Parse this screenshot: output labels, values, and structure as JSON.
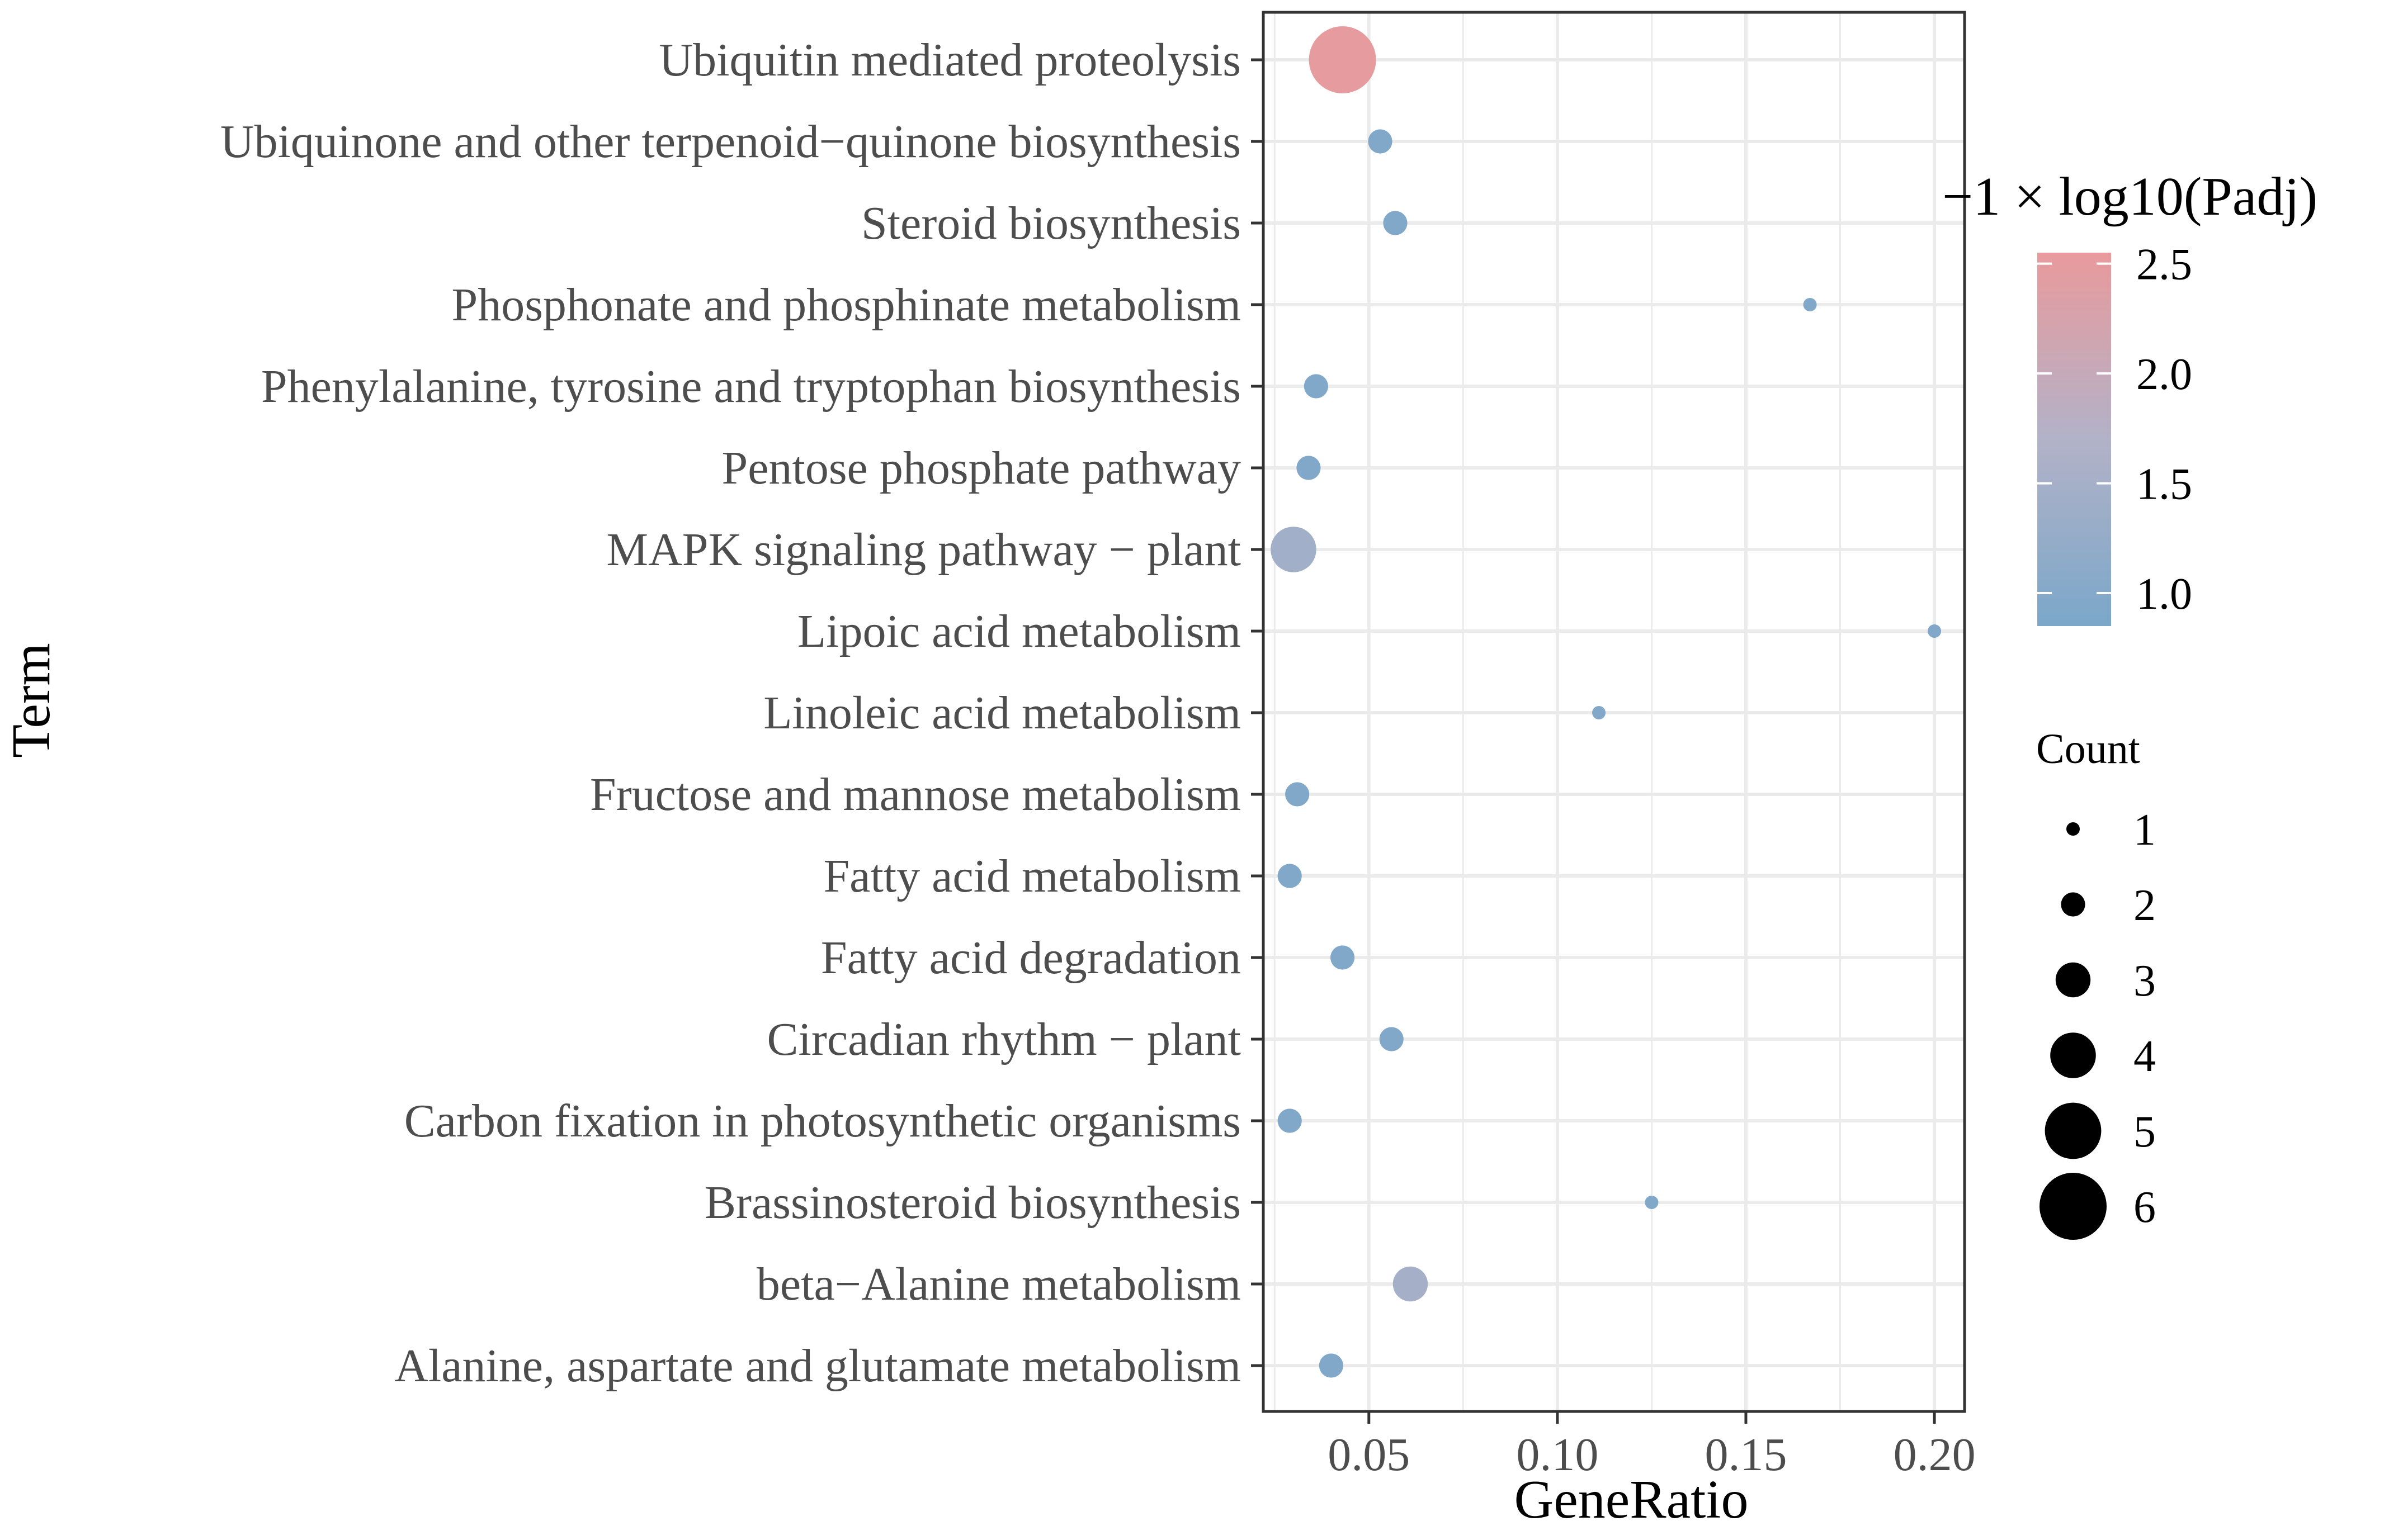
{
  "chart_data": {
    "type": "scatter",
    "title": "",
    "xlabel": "GeneRatio",
    "ylabel": "Term",
    "xlim": [
      0.022,
      0.208
    ],
    "x_ticks": [
      0.05,
      0.1,
      0.15,
      0.2
    ],
    "x_tick_labels": [
      "0.05",
      "0.10",
      "0.15",
      "0.20"
    ],
    "grid": true,
    "categories": [
      "Ubiquitin mediated proteolysis",
      "Ubiquinone and other terpenoid−quinone biosynthesis",
      "Steroid biosynthesis",
      "Phosphonate and phosphinate metabolism",
      "Phenylalanine, tyrosine and tryptophan biosynthesis",
      "Pentose phosphate pathway",
      "MAPK signaling pathway − plant",
      "Lipoic acid metabolism",
      "Linoleic acid metabolism",
      "Fructose and mannose metabolism",
      "Fatty acid metabolism",
      "Fatty acid degradation",
      "Circadian rhythm − plant",
      "Carbon fixation in photosynthetic organisms",
      "Brassinosteroid biosynthesis",
      "beta−Alanine metabolism",
      "Alanine, aspartate and glutamate metabolism"
    ],
    "points": [
      {
        "term": "Ubiquitin mediated proteolysis",
        "gene_ratio": 0.043,
        "count": 6,
        "neg_log10_padj": 2.5
      },
      {
        "term": "Ubiquinone and other terpenoid−quinone biosynthesis",
        "gene_ratio": 0.053,
        "count": 2,
        "neg_log10_padj": 0.95
      },
      {
        "term": "Steroid biosynthesis",
        "gene_ratio": 0.057,
        "count": 2,
        "neg_log10_padj": 0.95
      },
      {
        "term": "Phosphonate and phosphinate metabolism",
        "gene_ratio": 0.167,
        "count": 1,
        "neg_log10_padj": 0.95
      },
      {
        "term": "Phenylalanine, tyrosine and tryptophan biosynthesis",
        "gene_ratio": 0.036,
        "count": 2,
        "neg_log10_padj": 0.95
      },
      {
        "term": "Pentose phosphate pathway",
        "gene_ratio": 0.034,
        "count": 2,
        "neg_log10_padj": 0.95
      },
      {
        "term": "MAPK signaling pathway − plant",
        "gene_ratio": 0.03,
        "count": 4,
        "neg_log10_padj": 1.45
      },
      {
        "term": "Lipoic acid metabolism",
        "gene_ratio": 0.2,
        "count": 1,
        "neg_log10_padj": 0.95
      },
      {
        "term": "Linoleic acid metabolism",
        "gene_ratio": 0.111,
        "count": 1,
        "neg_log10_padj": 0.95
      },
      {
        "term": "Fructose and mannose metabolism",
        "gene_ratio": 0.031,
        "count": 2,
        "neg_log10_padj": 0.95
      },
      {
        "term": "Fatty acid metabolism",
        "gene_ratio": 0.029,
        "count": 2,
        "neg_log10_padj": 0.95
      },
      {
        "term": "Fatty acid degradation",
        "gene_ratio": 0.043,
        "count": 2,
        "neg_log10_padj": 0.95
      },
      {
        "term": "Circadian rhythm − plant",
        "gene_ratio": 0.056,
        "count": 2,
        "neg_log10_padj": 0.95
      },
      {
        "term": "Carbon fixation in photosynthetic organisms",
        "gene_ratio": 0.029,
        "count": 2,
        "neg_log10_padj": 0.95
      },
      {
        "term": "Brassinosteroid biosynthesis",
        "gene_ratio": 0.125,
        "count": 1,
        "neg_log10_padj": 0.95
      },
      {
        "term": "beta−Alanine metabolism",
        "gene_ratio": 0.061,
        "count": 3,
        "neg_log10_padj": 1.5
      },
      {
        "term": "Alanine, aspartate and glutamate metabolism",
        "gene_ratio": 0.04,
        "count": 2,
        "neg_log10_padj": 0.95
      }
    ],
    "color_legend": {
      "title": "−1 × log10(Padj)",
      "range": [
        0.85,
        2.55
      ],
      "ticks": [
        1.0,
        1.5,
        2.0,
        2.5
      ],
      "tick_labels": [
        "1.0",
        "1.5",
        "2.0",
        "2.5"
      ],
      "low_color": "#7ba7c9",
      "high_color": "#e99a9c"
    },
    "size_legend": {
      "title": "Count",
      "values": [
        1,
        2,
        3,
        4,
        5,
        6
      ],
      "labels": [
        "1",
        "2",
        "3",
        "4",
        "5",
        "6"
      ]
    },
    "colors": {
      "grid": "#ebebeb",
      "panel_border": "#333333",
      "legend_dot": "#000000"
    }
  }
}
